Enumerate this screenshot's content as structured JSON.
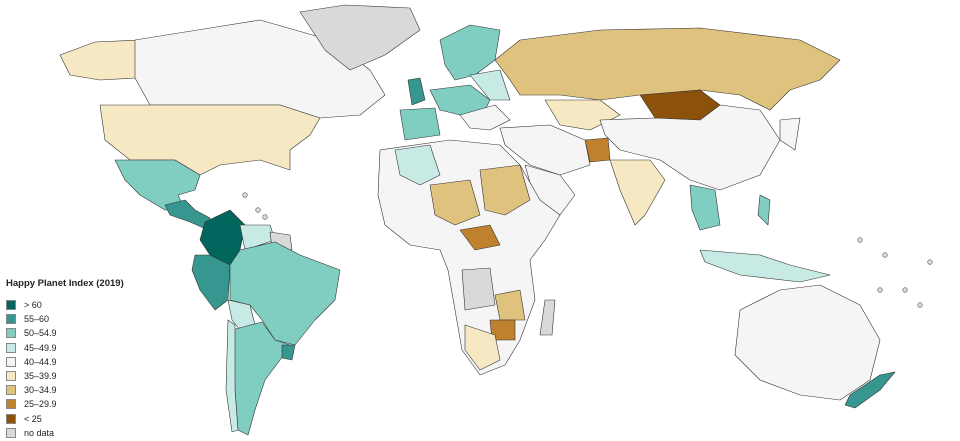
{
  "legend": {
    "title": "Happy Planet Index (2019)",
    "items": [
      {
        "label": "> 60",
        "color": "#01665e"
      },
      {
        "label": "55–60",
        "color": "#35978f"
      },
      {
        "label": "50–54.9",
        "color": "#80cdc1"
      },
      {
        "label": "45–49.9",
        "color": "#c7eae5"
      },
      {
        "label": "40–44.9",
        "color": "#f5f5f5"
      },
      {
        "label": "35–39.9",
        "color": "#f6e8c3"
      },
      {
        "label": "30–34.9",
        "color": "#dfc27d"
      },
      {
        "label": "25–29.9",
        "color": "#bf812d"
      },
      {
        "label": "< 25",
        "color": "#8c510a"
      },
      {
        "label": "no data",
        "color": "#d9d9d9"
      }
    ]
  }
}
